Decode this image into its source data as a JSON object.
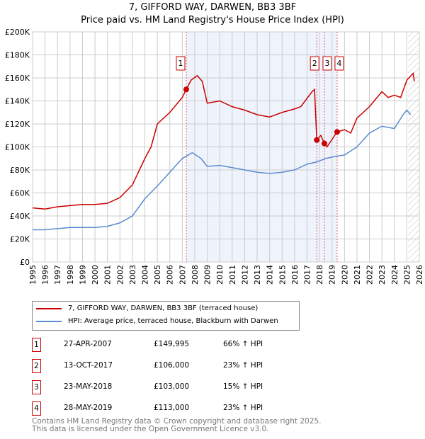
{
  "chart_data": {
    "type": "line",
    "title": "7, GIFFORD WAY, DARWEN, BB3 3BF",
    "subtitle": "Price paid vs. HM Land Registry's House Price Index (HPI)",
    "xlim": [
      1995,
      2026
    ],
    "ylim": [
      0,
      200000
    ],
    "x_ticks": [
      "1995",
      "1996",
      "1997",
      "1998",
      "1999",
      "2000",
      "2001",
      "2002",
      "2003",
      "2004",
      "2005",
      "2006",
      "2007",
      "2008",
      "2009",
      "2010",
      "2011",
      "2012",
      "2013",
      "2014",
      "2015",
      "2016",
      "2017",
      "2018",
      "2019",
      "2020",
      "2021",
      "2022",
      "2023",
      "2024",
      "2025",
      "2026"
    ],
    "y_ticks": [
      {
        "v": 0,
        "label": "£0"
      },
      {
        "v": 20000,
        "label": "£20K"
      },
      {
        "v": 40000,
        "label": "£40K"
      },
      {
        "v": 60000,
        "label": "£60K"
      },
      {
        "v": 80000,
        "label": "£80K"
      },
      {
        "v": 100000,
        "label": "£100K"
      },
      {
        "v": 120000,
        "label": "£120K"
      },
      {
        "v": 140000,
        "label": "£140K"
      },
      {
        "v": 160000,
        "label": "£160K"
      },
      {
        "v": 180000,
        "label": "£180K"
      },
      {
        "v": 200000,
        "label": "£200K"
      }
    ],
    "grid": true,
    "shaded_range": [
      2007.32,
      2019.4
    ],
    "hatched_from": 2025.1,
    "series": [
      {
        "name": "7, GIFFORD WAY, DARWEN, BB3 3BF (terraced house)",
        "color": "#cc0000",
        "points": [
          [
            1995,
            47000
          ],
          [
            1996,
            46000
          ],
          [
            1997,
            48000
          ],
          [
            1998,
            49000
          ],
          [
            1999,
            50000
          ],
          [
            2000,
            50000
          ],
          [
            2001,
            51000
          ],
          [
            2002,
            56000
          ],
          [
            2003,
            67000
          ],
          [
            2004,
            90000
          ],
          [
            2004.5,
            100000
          ],
          [
            2005,
            120000
          ],
          [
            2006,
            130000
          ],
          [
            2007,
            143000
          ],
          [
            2007.32,
            149995
          ],
          [
            2007.7,
            158000
          ],
          [
            2008.2,
            162000
          ],
          [
            2008.6,
            157000
          ],
          [
            2009,
            138000
          ],
          [
            2010,
            140000
          ],
          [
            2011,
            135000
          ],
          [
            2012,
            132000
          ],
          [
            2013,
            128000
          ],
          [
            2014,
            126000
          ],
          [
            2015,
            130000
          ],
          [
            2016,
            133000
          ],
          [
            2016.5,
            135000
          ],
          [
            2017.4,
            148000
          ],
          [
            2017.6,
            150000
          ],
          [
            2017.78,
            106000
          ],
          [
            2018.1,
            110000
          ],
          [
            2018.39,
            103000
          ],
          [
            2018.6,
            100000
          ],
          [
            2019.4,
            113000
          ],
          [
            2020,
            115000
          ],
          [
            2020.5,
            112000
          ],
          [
            2021,
            125000
          ],
          [
            2022,
            135000
          ],
          [
            2023,
            148000
          ],
          [
            2023.5,
            143000
          ],
          [
            2024,
            145000
          ],
          [
            2024.5,
            143000
          ],
          [
            2025,
            158000
          ],
          [
            2025.5,
            164000
          ],
          [
            2025.6,
            157000
          ]
        ]
      },
      {
        "name": "HPI: Average price, terraced house, Blackburn with Darwen",
        "color": "#5b8bd0",
        "points": [
          [
            1995,
            28000
          ],
          [
            1996,
            28000
          ],
          [
            1997,
            29000
          ],
          [
            1998,
            30000
          ],
          [
            1999,
            30000
          ],
          [
            2000,
            30000
          ],
          [
            2001,
            31000
          ],
          [
            2002,
            34000
          ],
          [
            2003,
            40000
          ],
          [
            2004,
            55000
          ],
          [
            2005,
            66000
          ],
          [
            2006,
            78000
          ],
          [
            2007,
            90000
          ],
          [
            2007.8,
            95000
          ],
          [
            2008.5,
            90000
          ],
          [
            2009,
            83000
          ],
          [
            2010,
            84000
          ],
          [
            2011,
            82000
          ],
          [
            2012,
            80000
          ],
          [
            2013,
            78000
          ],
          [
            2014,
            77000
          ],
          [
            2015,
            78000
          ],
          [
            2016,
            80000
          ],
          [
            2017,
            85000
          ],
          [
            2017.8,
            87000
          ],
          [
            2018.5,
            90000
          ],
          [
            2019.4,
            92000
          ],
          [
            2020,
            93000
          ],
          [
            2021,
            100000
          ],
          [
            2022,
            112000
          ],
          [
            2023,
            118000
          ],
          [
            2024,
            116000
          ],
          [
            2024.7,
            128000
          ],
          [
            2025,
            132000
          ],
          [
            2025.3,
            128000
          ]
        ]
      }
    ],
    "sales": [
      {
        "n": "1",
        "x": 2007.32,
        "y": 149995,
        "date": "27-APR-2007",
        "price": "£149,995",
        "hpi": "66% ↑ HPI"
      },
      {
        "n": "2",
        "x": 2017.78,
        "y": 106000,
        "date": "13-OCT-2017",
        "price": "£106,000",
        "hpi": "23% ↑ HPI"
      },
      {
        "n": "3",
        "x": 2018.39,
        "y": 103000,
        "date": "23-MAY-2018",
        "price": "£103,000",
        "hpi": "15% ↑ HPI"
      },
      {
        "n": "4",
        "x": 2019.41,
        "y": 113000,
        "date": "28-MAY-2019",
        "price": "£113,000",
        "hpi": "23% ↑ HPI"
      }
    ]
  },
  "legend": {
    "red": "7, GIFFORD WAY, DARWEN, BB3 3BF (terraced house)",
    "blue": "HPI: Average price, terraced house, Blackburn with Darwen"
  },
  "footer": {
    "line1": "Contains HM Land Registry data © Crown copyright and database right 2025.",
    "line2": "This data is licensed under the Open Government Licence v3.0."
  }
}
